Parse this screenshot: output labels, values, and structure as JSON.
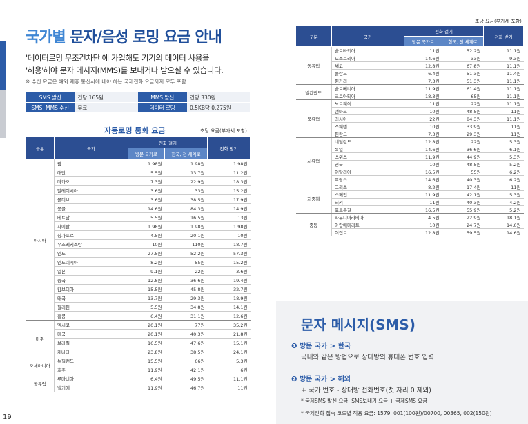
{
  "page_number": "19",
  "title": {
    "part1": "국가별",
    "part2": "문자/음성 로밍",
    "part3": "요금 안내"
  },
  "intro": {
    "line1": "'데이터로밍 무조건차단'에 가입해도 기기의 데이터 사용을",
    "line2": "'허용'해야 문자 메시지(MMS)를 보내거나 받으실 수 있습니다.",
    "note": "※ 수신 요금은 해외 제휴 통신사에 내야 하는 국제전화 요금까지 모두 포함"
  },
  "fee_table": {
    "rows": [
      [
        "SMS 발신",
        "건당 165원",
        "MMS 발신",
        "건당 330원"
      ],
      [
        "SMS, MMS 수신",
        "무료",
        "데이터 로밍",
        "0.5KB당 0.275원"
      ]
    ]
  },
  "left_table": {
    "title": "자동로밍 통화 요금",
    "unit": "초당 요금(부가세 포함)",
    "header": {
      "group": "구분",
      "country": "국가",
      "call": "전화 걸기",
      "to_visit": "방문 국가로",
      "to_korea": "한국, 전 세계로",
      "receive": "전화 받기"
    },
    "groups": [
      {
        "region": "아시아",
        "rows": [
          [
            "괌",
            "1.98원",
            "1.98원",
            "1.98원"
          ],
          [
            "대만",
            "5.5원",
            "13.7원",
            "11.2원"
          ],
          [
            "마카오",
            "7.3원",
            "22.9원",
            "18.3원"
          ],
          [
            "말레이시아",
            "3.6원",
            "33원",
            "15.2원"
          ],
          [
            "몰디브",
            "3.6원",
            "38.5원",
            "17.9원"
          ],
          [
            "몽골",
            "14.6원",
            "84.3원",
            "14.9원"
          ],
          [
            "베트남",
            "5.5원",
            "16.5원",
            "13원"
          ],
          [
            "사이판",
            "1.98원",
            "1.98원",
            "1.98원"
          ],
          [
            "싱가포르",
            "4.5원",
            "20.1원",
            "10원"
          ],
          [
            "우즈베키스탄",
            "10원",
            "110원",
            "18.7원"
          ],
          [
            "인도",
            "27.5원",
            "52.2원",
            "57.3원"
          ],
          [
            "인도네시아",
            "8.2원",
            "55원",
            "15.2원"
          ],
          [
            "일본",
            "9.1원",
            "22원",
            "3.6원"
          ],
          [
            "중국",
            "12.8원",
            "36.6원",
            "19.4원"
          ],
          [
            "캄보디아",
            "15.5원",
            "45.8원",
            "32.7원"
          ],
          [
            "태국",
            "13.7원",
            "29.3원",
            "18.9원"
          ],
          [
            "필리핀",
            "5.5원",
            "34.8원",
            "14.1원"
          ],
          [
            "홍콩",
            "6.4원",
            "31.1원",
            "12.6원"
          ]
        ]
      },
      {
        "region": "미주",
        "rows": [
          [
            "멕시코",
            "20.1원",
            "77원",
            "35.2원"
          ],
          [
            "미국",
            "20.1원",
            "40.3원",
            "21.8원"
          ],
          [
            "브라질",
            "16.5원",
            "47.6원",
            "15.1원"
          ],
          [
            "캐나다",
            "23.8원",
            "38.5원",
            "24.1원"
          ]
        ]
      },
      {
        "region": "오세아니아",
        "rows": [
          [
            "뉴질랜드",
            "15.5원",
            "66원",
            "5.3원"
          ],
          [
            "호주",
            "11.9원",
            "42.1원",
            "6원"
          ]
        ]
      },
      {
        "region": "동유럽",
        "rows": [
          [
            "루마니아",
            "6.4원",
            "49.5원",
            "11.1원"
          ],
          [
            "벨기에",
            "11.9원",
            "46.7원",
            "11원"
          ]
        ]
      }
    ]
  },
  "right_table": {
    "unit": "초당 요금(부가세 포함)",
    "header": {
      "group": "구분",
      "country": "국가",
      "call": "전화 걸기",
      "to_visit": "방문 국가로",
      "to_korea": "한국, 전 세계로",
      "receive": "전화 받기"
    },
    "groups": [
      {
        "region": "동유럽",
        "rows": [
          [
            "슬로바키아",
            "11원",
            "52.2원",
            "11.1원"
          ],
          [
            "오스트리아",
            "14.6원",
            "33원",
            "9.3원"
          ],
          [
            "체코",
            "12.8원",
            "67.8원",
            "11.1원"
          ],
          [
            "폴란드",
            "6.4원",
            "51.3원",
            "11.4원"
          ],
          [
            "헝가리",
            "7.3원",
            "51.3원",
            "11.1원"
          ]
        ]
      },
      {
        "region": "발칸반도",
        "rows": [
          [
            "슬로베니아",
            "11.9원",
            "61.4원",
            "11.1원"
          ],
          [
            "크로아티아",
            "18.3원",
            "65원",
            "11.1원"
          ]
        ]
      },
      {
        "region": "북유럽",
        "rows": [
          [
            "노르웨이",
            "11원",
            "22원",
            "11.1원"
          ],
          [
            "덴마크",
            "10원",
            "48.5원",
            "11원"
          ],
          [
            "러시아",
            "22원",
            "84.3원",
            "11.1원"
          ],
          [
            "스웨덴",
            "10원",
            "33.9원",
            "11원"
          ],
          [
            "핀란드",
            "7.3원",
            "29.3원",
            "11원"
          ]
        ]
      },
      {
        "region": "서유럽",
        "rows": [
          [
            "네덜란드",
            "12.8원",
            "22원",
            "5.3원"
          ],
          [
            "독일",
            "14.6원",
            "36.6원",
            "6.1원"
          ],
          [
            "스위스",
            "11.9원",
            "44.9원",
            "5.3원"
          ],
          [
            "영국",
            "10원",
            "48.5원",
            "5.2원"
          ],
          [
            "이탈리아",
            "16.5원",
            "55원",
            "6.2원"
          ],
          [
            "프랑스",
            "14.6원",
            "40.3원",
            "6.2원"
          ]
        ]
      },
      {
        "region": "지중해",
        "rows": [
          [
            "그리스",
            "8.2원",
            "17.4원",
            "11원"
          ],
          [
            "스페인",
            "11.9원",
            "42.1원",
            "5.3원"
          ],
          [
            "터키",
            "11원",
            "40.3원",
            "4.2원"
          ],
          [
            "포르투갈",
            "16.5원",
            "55.9원",
            "5.2원"
          ]
        ]
      },
      {
        "region": "중동",
        "rows": [
          [
            "사우디아라비아",
            "4.5원",
            "22.9원",
            "18.1원"
          ],
          [
            "아랍에미리트",
            "10원",
            "24.7원",
            "14.6원"
          ],
          [
            "이집트",
            "12.8원",
            "59.5원",
            "14.6원"
          ]
        ]
      }
    ]
  },
  "sms": {
    "title": "문자 메시지(SMS)",
    "step1": {
      "heading": "❶ 방문 국가 > 한국",
      "text": "국내와 같은 방법으로 상대방의 휴대폰 번호 입력"
    },
    "step2": {
      "heading": "❷ 방문 국가 > 해외",
      "text": "+ 국가 번호 - 상대방 전화번호(첫 자리 0 제외)",
      "note1": "* 국제SMS 발신 요금: SMS보내기 요금 + 국제SMS 요금",
      "note2": "* 국제전화 접속 코드별 적용 요금: 1579, 001(100원)/00700, 00365, 002(150원)"
    }
  }
}
